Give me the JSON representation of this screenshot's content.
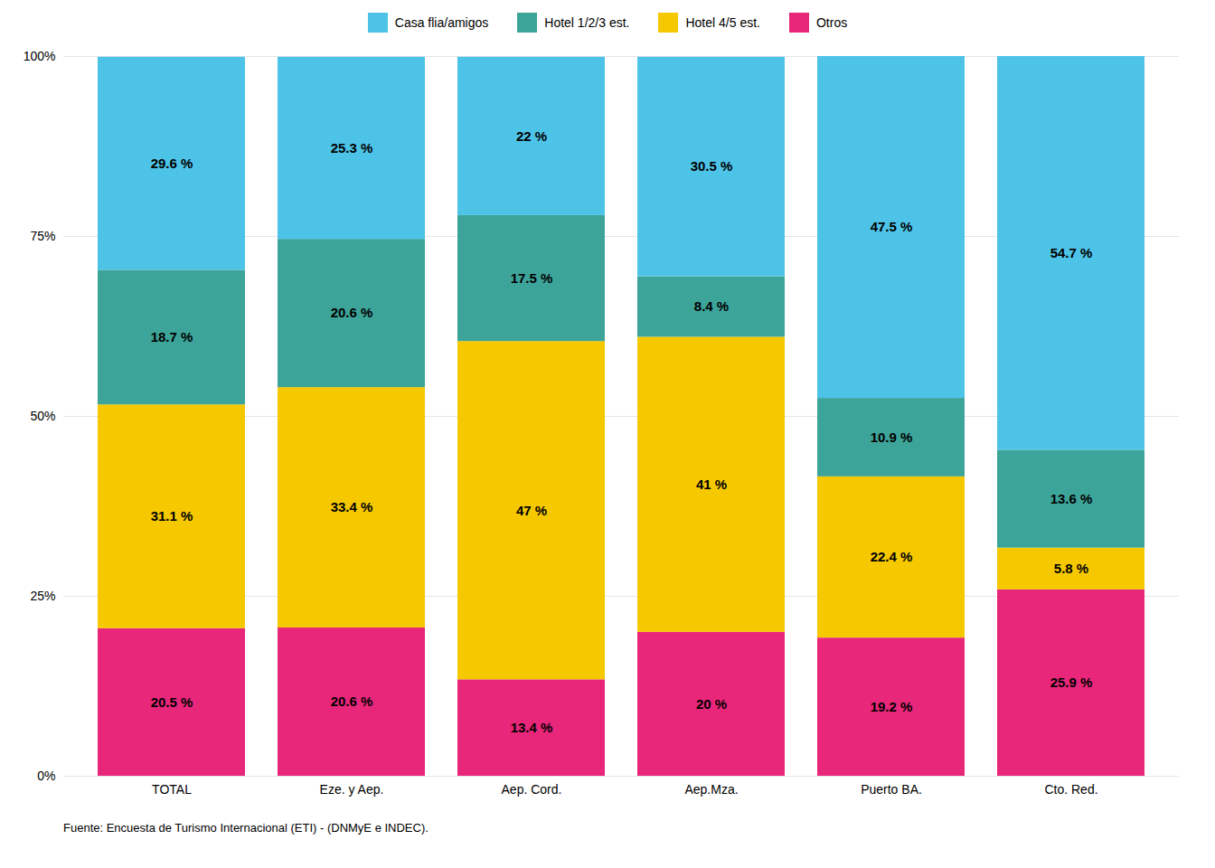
{
  "chart_data": {
    "type": "bar",
    "stacked": true,
    "data_labels": true,
    "grid": true,
    "legend": "top",
    "caption": "Fuente: Encuesta de Turismo Internacional (ETI) - (DNMyE e INDEC).",
    "categories": [
      "TOTAL",
      "Eze. y Aep.",
      "Aep. Cord.",
      "Aep.Mza.",
      "Puerto BA.",
      "Cto. Red."
    ],
    "series": [
      {
        "name": "Otros",
        "color": "#E8267A",
        "values": [
          20.5,
          20.6,
          13.4,
          20.0,
          19.2,
          25.9
        ],
        "value_labels": [
          "20.5 %",
          "20.6 %",
          "13.4 %",
          "20 %",
          "19.2 %",
          "25.9 %"
        ]
      },
      {
        "name": "Hotel 4/5 est.",
        "color": "#F5C800",
        "values": [
          31.1,
          33.4,
          47.0,
          41.0,
          22.4,
          5.8
        ],
        "value_labels": [
          "31.1 %",
          "33.4 %",
          "47 %",
          "41 %",
          "22.4 %",
          "5.8 %"
        ]
      },
      {
        "name": "Hotel 1/2/3 est.",
        "color": "#3DA49A",
        "values": [
          18.7,
          20.6,
          17.5,
          8.4,
          10.9,
          13.6
        ],
        "value_labels": [
          "18.7 %",
          "20.6 %",
          "17.5 %",
          "8.4 %",
          "10.9 %",
          "13.6 %"
        ]
      },
      {
        "name": "Casa flia/amigos",
        "color": "#4DC3E8",
        "values": [
          29.6,
          25.3,
          22.0,
          30.5,
          47.5,
          54.7
        ],
        "value_labels": [
          "29.6 %",
          "25.3 %",
          "22 %",
          "30.5 %",
          "47.5 %",
          "54.7 %"
        ]
      }
    ],
    "ylim": [
      0,
      100
    ],
    "yticks": [
      {
        "value": 0,
        "label": "0%"
      },
      {
        "value": 25,
        "label": "25%"
      },
      {
        "value": 50,
        "label": "50%"
      },
      {
        "value": 75,
        "label": "75%"
      },
      {
        "value": 100,
        "label": "100%"
      }
    ]
  }
}
